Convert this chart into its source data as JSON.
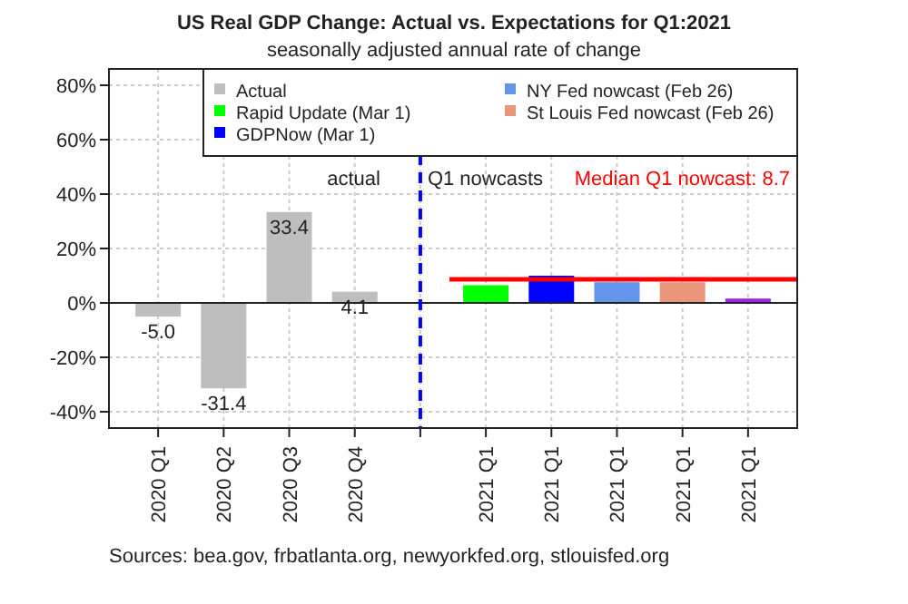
{
  "chart_data": {
    "type": "bar",
    "title": "US Real GDP Change: Actual vs. Expectations for Q1:2021",
    "subtitle": "seasonally adjusted annual rate of change",
    "annotations": [
      "actual",
      "Q1 nowcasts",
      "Sources: bea.gov, frbatlanta.org, newyorkfed.org, stlouisfed.org"
    ],
    "categories": [
      "2020 Q1",
      "2020 Q2",
      "2020 Q3",
      "2020 Q4",
      null,
      "2021 Q1",
      "2021 Q1",
      "2021 Q1",
      "2021 Q1",
      "2021 Q1"
    ],
    "ylim": [
      -46,
      86
    ],
    "yticks": [
      {
        "value": -40,
        "label": "-40%"
      },
      {
        "value": -20,
        "label": "-20%"
      },
      {
        "value": 0,
        "label": "0%"
      },
      {
        "value": 20,
        "label": "20%"
      },
      {
        "value": 40,
        "label": "40%"
      },
      {
        "value": 60,
        "label": "60%"
      },
      {
        "value": 80,
        "label": "80%"
      }
    ],
    "series": [
      {
        "name": "Actual",
        "color": "#bebebe",
        "values": [
          -5.0,
          -31.4,
          33.4,
          4.1,
          null,
          null,
          null,
          null,
          null,
          null
        ],
        "value_labels": [
          "-5.0",
          "-31.4",
          "33.4",
          "4.1",
          null,
          null,
          null,
          null,
          null,
          null
        ]
      },
      {
        "name": "Rapid Update (Mar 1)",
        "color": "#00ff00",
        "values": [
          null,
          null,
          null,
          null,
          null,
          6.5,
          null,
          null,
          null,
          null
        ]
      },
      {
        "name": "GDPNow (Mar 1)",
        "color": "#0000ff",
        "values": [
          null,
          null,
          null,
          null,
          null,
          null,
          10.0,
          null,
          null,
          null
        ]
      },
      {
        "name": "NY Fed nowcast (Feb 26)",
        "color": "#6495ed",
        "values": [
          null,
          null,
          null,
          null,
          null,
          null,
          null,
          7.6,
          null,
          null
        ]
      },
      {
        "name": "St Louis Fed nowcast (Feb 26)",
        "color": "#e9967a",
        "values": [
          null,
          null,
          null,
          null,
          null,
          null,
          null,
          null,
          7.6,
          null
        ]
      },
      {
        "color": "#a020f0",
        "values": [
          null,
          null,
          null,
          null,
          null,
          null,
          null,
          null,
          null,
          1.6
        ]
      }
    ],
    "ref_lines": [
      {
        "axis": "y",
        "value": 8.7,
        "label": "Median Q1 nowcast:   8.7",
        "color": "#ff0000"
      }
    ],
    "grid": true,
    "legend": "top right"
  }
}
